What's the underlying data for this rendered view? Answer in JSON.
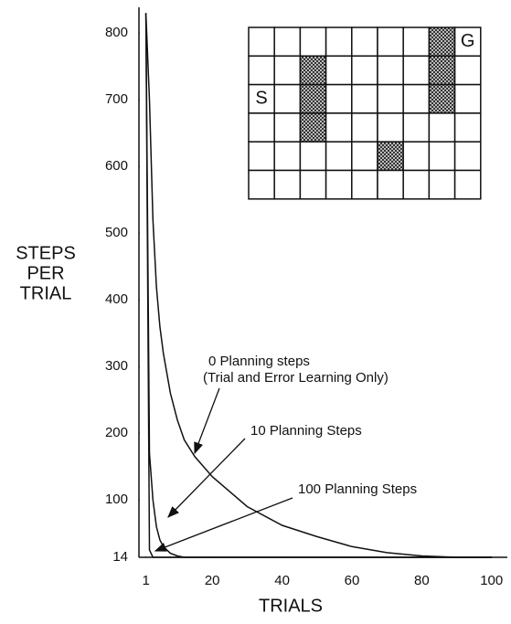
{
  "chart_data": {
    "type": "line",
    "xlabel": "TRIALS",
    "ylabel": [
      "STEPS",
      "PER",
      "TRIAL"
    ],
    "x": [
      1,
      2,
      3,
      4,
      5,
      6,
      8,
      10,
      12,
      15,
      20,
      30,
      40,
      50,
      60,
      70,
      80,
      90,
      100
    ],
    "series": [
      {
        "name": "0 Planning steps",
        "color": "#111111",
        "values": [
          830,
          700,
          520,
          420,
          360,
          320,
          260,
          220,
          190,
          165,
          135,
          90,
          62,
          45,
          30,
          21,
          16,
          14,
          14
        ]
      },
      {
        "name": "10 Planning Steps",
        "color": "#111111",
        "values": [
          830,
          170,
          100,
          60,
          40,
          30,
          20,
          16,
          14,
          14,
          14,
          14,
          14,
          14,
          14,
          14,
          14,
          14,
          14
        ]
      },
      {
        "name": "100 Planning Steps",
        "color": "#111111",
        "values": [
          830,
          25,
          14,
          14,
          14,
          14,
          14,
          14,
          14,
          14,
          14,
          14,
          14,
          14,
          14,
          14,
          14,
          14,
          14
        ]
      }
    ],
    "xlim": [
      -1,
      104
    ],
    "xticks": [
      1,
      20,
      40,
      60,
      80,
      100
    ],
    "ylim": [
      14,
      836
    ],
    "yticks": [
      14,
      100,
      200,
      300,
      400,
      500,
      600,
      700,
      800
    ],
    "annotations": [
      [
        "0 Planning steps",
        "(Trial and Error Learning Only)"
      ],
      [
        "10 Planning Steps"
      ],
      [
        "100 Planning Steps"
      ]
    ],
    "maze": {
      "start": "S",
      "goal": "G"
    }
  }
}
